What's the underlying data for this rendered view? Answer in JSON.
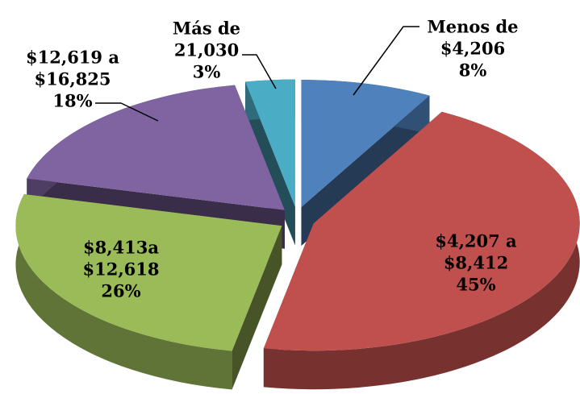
{
  "chart_data": {
    "type": "pie",
    "categories": [
      "Menos de $4,206",
      "$4,207 a $8,412",
      "$8,413a $12,618",
      "$12,619 a $16,825",
      "Más de 21,030"
    ],
    "values": [
      8,
      45,
      26,
      18,
      3
    ],
    "value_labels": [
      "8%",
      "45%",
      "26%",
      "18%",
      "3%"
    ],
    "colors": [
      "#4f81bd",
      "#c0504d",
      "#9bbb59",
      "#8064a2",
      "#4bacc6"
    ]
  }
}
